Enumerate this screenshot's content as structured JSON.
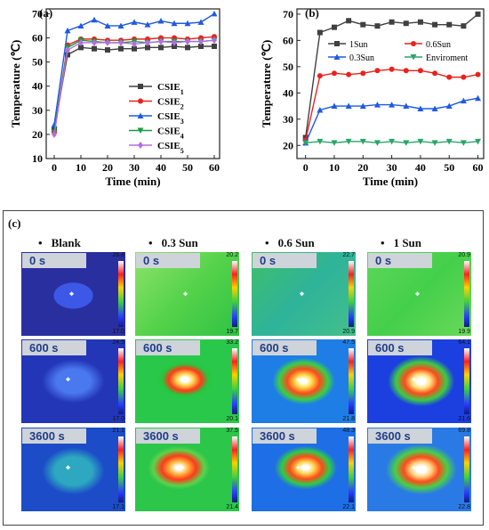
{
  "panel_labels": {
    "a": "(a)",
    "b": "(b)",
    "c": "(c)"
  },
  "chart_data": [
    {
      "type": "line",
      "xlabel": "Time (min)",
      "ylabel": "Temperature (℃)",
      "xlim": [
        -3,
        62
      ],
      "ylim": [
        10,
        72
      ],
      "xticks": [
        0,
        10,
        20,
        30,
        40,
        50,
        60
      ],
      "yticks": [
        10,
        20,
        30,
        40,
        50,
        60,
        70
      ],
      "legend": "center-right",
      "x": [
        0,
        5,
        10,
        15,
        20,
        25,
        30,
        35,
        40,
        45,
        50,
        55,
        60
      ],
      "series": [
        {
          "name": "CSIE",
          "sub": "1",
          "color": "#404040",
          "marker": "square",
          "values": [
            22,
            53,
            56,
            55.5,
            55,
            55.5,
            55.5,
            56,
            56,
            56.5,
            56,
            56.5,
            56.5
          ]
        },
        {
          "name": "CSIE",
          "sub": "2",
          "color": "#e8231f",
          "marker": "circle",
          "values": [
            21,
            57,
            59.5,
            59.5,
            59,
            59,
            59.5,
            59.5,
            60,
            60,
            59.5,
            60,
            60.5
          ]
        },
        {
          "name": "CSIE",
          "sub": "3",
          "color": "#1f5ae0",
          "marker": "triangle",
          "values": [
            24,
            63,
            65,
            67.5,
            65,
            65,
            66.5,
            65.5,
            67,
            66,
            66,
            66.5,
            70
          ]
        },
        {
          "name": "CSIE",
          "sub": "4",
          "color": "#1a9a44",
          "marker": "triangle-down",
          "values": [
            21,
            56,
            59,
            58.5,
            58,
            58,
            58.5,
            58,
            58.5,
            58.5,
            58.5,
            58.5,
            59
          ]
        },
        {
          "name": "CSIE",
          "sub": "5",
          "color": "#b46ee0",
          "marker": "diamond",
          "values": [
            20,
            55,
            58,
            58,
            58,
            58,
            57.5,
            58,
            58.5,
            58,
            58.5,
            58.5,
            59
          ]
        }
      ]
    },
    {
      "type": "line",
      "xlabel": "Time (min)",
      "ylabel": "Temperature (℃)",
      "xlim": [
        -3,
        62
      ],
      "ylim": [
        15,
        72
      ],
      "xticks": [
        0,
        10,
        20,
        30,
        40,
        50,
        60
      ],
      "yticks": [
        20,
        30,
        40,
        50,
        60,
        70
      ],
      "legend": "top",
      "x": [
        0,
        5,
        10,
        15,
        20,
        25,
        30,
        35,
        40,
        45,
        50,
        55,
        60
      ],
      "series": [
        {
          "name": "1Sun",
          "color": "#404040",
          "marker": "square",
          "values": [
            23,
            63,
            65,
            67.5,
            66,
            65.5,
            67,
            66.5,
            67,
            66,
            66,
            65.5,
            70
          ]
        },
        {
          "name": "0.6Sun",
          "color": "#e8231f",
          "marker": "circle",
          "values": [
            22,
            46.5,
            47.5,
            47,
            47.5,
            48.5,
            49,
            48.5,
            48.5,
            47.5,
            46,
            46,
            47
          ]
        },
        {
          "name": "0.3Sun",
          "color": "#1f5ae0",
          "marker": "triangle",
          "values": [
            21,
            33.5,
            35,
            35,
            35,
            35.5,
            35.5,
            35,
            34,
            34,
            35,
            37,
            38
          ]
        },
        {
          "name": "Enviroment",
          "color": "#2aa56a",
          "marker": "triangle-down",
          "values": [
            21,
            21.5,
            21,
            21.5,
            21.5,
            21,
            21.5,
            21,
            21.5,
            21,
            21.5,
            21,
            21.5
          ]
        }
      ]
    }
  ],
  "thermal": {
    "columns": [
      {
        "label": "Blank",
        "kind": "blank",
        "tiles": [
          {
            "time": "0 s",
            "max": "26.8",
            "min": "17.0"
          },
          {
            "time": "600 s",
            "max": "24.5",
            "min": "17.0"
          },
          {
            "time": "3600 s",
            "max": "21.1",
            "min": "17.1"
          }
        ]
      },
      {
        "label": "0.3 Sun",
        "kind": "s03",
        "tiles": [
          {
            "time": "0 s",
            "max": "20.2",
            "min": "19.7"
          },
          {
            "time": "600 s",
            "max": "33.2",
            "min": "20.1"
          },
          {
            "time": "3600 s",
            "max": "37.5",
            "min": "21.4"
          }
        ]
      },
      {
        "label": "0.6 Sun",
        "kind": "s06",
        "tiles": [
          {
            "time": "0 s",
            "max": "22.7",
            "min": "20.9"
          },
          {
            "time": "600 s",
            "max": "47.5",
            "min": "21.8"
          },
          {
            "time": "3600 s",
            "max": "48.3",
            "min": "22.1"
          }
        ]
      },
      {
        "label": "1 Sun",
        "kind": "s1",
        "tiles": [
          {
            "time": "0 s",
            "max": "20.9",
            "min": "19.9"
          },
          {
            "time": "600 s",
            "max": "64.1",
            "min": "21.6"
          },
          {
            "time": "3600 s",
            "max": "69.8",
            "min": "22.8"
          }
        ]
      }
    ]
  }
}
